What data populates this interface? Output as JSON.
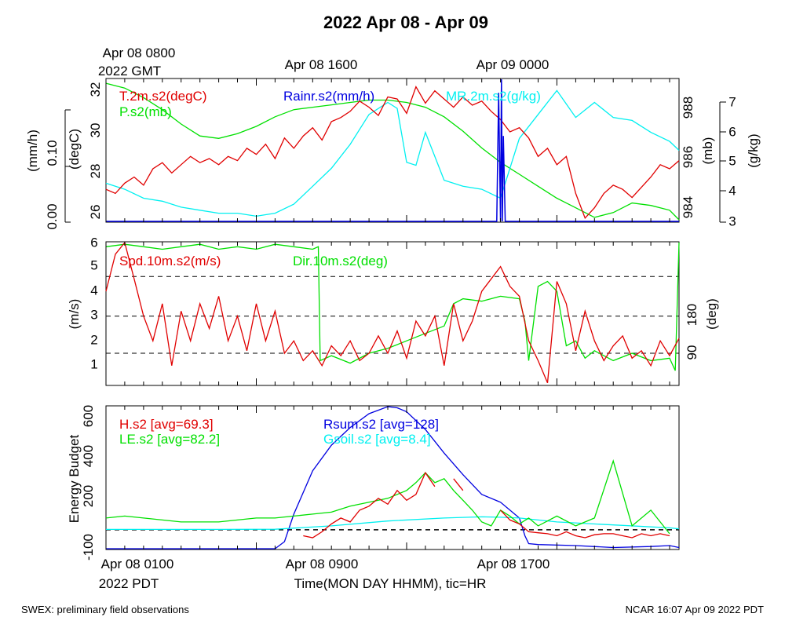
{
  "page": {
    "title": "2022 Apr 08 - Apr 09",
    "footer_left": "SWEX: preliminary field observations",
    "footer_right": "NCAR 16:07 Apr 09 2022 PDT",
    "top_time_labels": [
      "Apr 08 0800",
      "Apr 08 1600",
      "Apr 09 0000"
    ],
    "top_time_zone": "2022 GMT",
    "bottom_time_labels": [
      "Apr 08 0100",
      "Apr 08 0900",
      "Apr 08 1700"
    ],
    "bottom_time_zone": "2022 PDT",
    "xaxis_title": "Time(MON DAY HHMM), tic=HR"
  },
  "colors": {
    "red": "#e00000",
    "green": "#00e000",
    "blue": "#0000e0",
    "cyan": "#00f0f0",
    "axis": "#000000"
  },
  "chart_data": [
    {
      "type": "line",
      "panel": "top",
      "x_unit": "hours since Apr 08 0100 PDT",
      "xlim": [
        0,
        30.5
      ],
      "axes": {
        "left_inner": {
          "label": "(degC)",
          "ylim": [
            25.4,
            32.4
          ],
          "ticks": [
            26,
            28,
            30,
            32
          ]
        },
        "left_outer": {
          "label": "(mm/h)",
          "ylim": [
            0,
            0.2
          ],
          "ticks": [
            "0.00",
            "0.10"
          ]
        },
        "right_inner": {
          "label": "(mb)",
          "ylim": [
            983.2,
            989.2
          ],
          "ticks": [
            984,
            986,
            988
          ]
        },
        "right_outer": {
          "label": "(g/kg)",
          "ylim": [
            3,
            7.8
          ],
          "ticks": [
            3,
            4,
            5,
            6,
            7
          ]
        }
      },
      "series": [
        {
          "name": "T.2m.s2(degC)",
          "color": "red",
          "axis": "left_inner",
          "x": [
            0,
            0.5,
            1,
            1.5,
            2,
            2.5,
            3,
            3.5,
            4,
            4.5,
            5,
            5.5,
            6,
            6.5,
            7,
            7.5,
            8,
            8.5,
            9,
            9.5,
            10,
            10.5,
            11,
            11.5,
            12,
            12.5,
            13,
            13.5,
            14,
            14.5,
            15,
            15.5,
            16,
            16.5,
            17,
            17.5,
            18,
            18.5,
            19,
            19.5,
            20,
            20.5,
            21,
            21.5,
            22,
            22.5,
            23,
            23.5,
            24,
            24.5,
            25,
            25.5,
            26,
            26.5,
            27,
            27.5,
            28,
            28.5,
            29,
            29.5,
            30,
            30.5
          ],
          "y": [
            27.0,
            26.8,
            27.3,
            27.6,
            27.2,
            28.0,
            28.3,
            27.8,
            28.2,
            28.6,
            28.3,
            28.5,
            28.2,
            28.6,
            28.4,
            29.0,
            28.7,
            29.2,
            28.5,
            29.5,
            29.0,
            29.6,
            30.0,
            29.4,
            30.3,
            30.5,
            30.8,
            31.3,
            31.0,
            30.6,
            31.5,
            31.4,
            30.7,
            32.0,
            31.2,
            31.8,
            31.4,
            31.0,
            31.5,
            31.1,
            31.3,
            30.8,
            30.4,
            29.8,
            30.0,
            29.5,
            28.6,
            29.0,
            28.2,
            28.6,
            26.8,
            25.6,
            26.1,
            26.8,
            27.2,
            27.0,
            26.6,
            27.1,
            27.6,
            28.2,
            28.0,
            28.4
          ]
        },
        {
          "name": "P.s2(mb)",
          "color": "green",
          "axis": "right_inner",
          "x": [
            0,
            1,
            2,
            3,
            4,
            5,
            6,
            7,
            8,
            9,
            10,
            11,
            12,
            13,
            14,
            15,
            16,
            17,
            18,
            19,
            20,
            21,
            22,
            23,
            24,
            25,
            26,
            27,
            28,
            29,
            30,
            30.5
          ],
          "y": [
            989.0,
            988.8,
            988.4,
            987.9,
            987.3,
            986.8,
            986.7,
            986.9,
            987.2,
            987.6,
            987.9,
            988.0,
            988.1,
            988.2,
            988.3,
            988.3,
            988.2,
            988.0,
            987.6,
            987.0,
            986.3,
            985.7,
            985.2,
            984.7,
            984.2,
            983.8,
            983.4,
            983.6,
            984.0,
            983.9,
            983.7,
            983.3
          ]
        },
        {
          "name": "Rainr.s2(mm/h)",
          "color": "blue",
          "axis": "left_outer",
          "x": [
            0,
            20.8,
            20.9,
            21.0,
            21.05,
            21.1,
            21.15,
            21.25,
            21.35,
            30.5
          ],
          "y": [
            0,
            0,
            0.18,
            0,
            0.2,
            0,
            0.12,
            0,
            0,
            0
          ]
        },
        {
          "name": "MR.2m.s2(g/kg)",
          "color": "cyan",
          "axis": "right_outer",
          "x": [
            0,
            1,
            2,
            3,
            4,
            5,
            6,
            7,
            8,
            9,
            10,
            11,
            12,
            13,
            14,
            15,
            15.5,
            16,
            16.5,
            17,
            18,
            19,
            20,
            21,
            22,
            23,
            24,
            25,
            26,
            27,
            28,
            29,
            30,
            30.5
          ],
          "y": [
            4.3,
            4.1,
            3.8,
            3.7,
            3.5,
            3.4,
            3.3,
            3.3,
            3.2,
            3.3,
            3.6,
            4.2,
            4.8,
            5.6,
            6.6,
            7.0,
            6.8,
            5.0,
            4.9,
            6.0,
            4.4,
            4.2,
            4.1,
            3.8,
            5.8,
            6.6,
            7.4,
            6.5,
            7.0,
            6.5,
            6.4,
            6.0,
            5.7,
            5.4
          ]
        }
      ]
    },
    {
      "type": "line",
      "panel": "middle",
      "x_unit": "hours since Apr 08 0100 PDT",
      "xlim": [
        0,
        30.5
      ],
      "axes": {
        "left": {
          "label": "(m/s)",
          "ylim": [
            0.2,
            6
          ],
          "ticks": [
            1,
            2,
            3,
            4,
            5,
            6
          ]
        },
        "right": {
          "label": "(deg)",
          "ticks": [
            90,
            180
          ]
        }
      },
      "reference_lines_ms": [
        1.5,
        3.0,
        4.6
      ],
      "series": [
        {
          "name": "Spd.10m.s2(m/s)",
          "color": "red",
          "axis": "left",
          "x": [
            0,
            0.5,
            1,
            1.5,
            2,
            2.5,
            3,
            3.5,
            4,
            4.5,
            5,
            5.5,
            6,
            6.5,
            7,
            7.5,
            8,
            8.5,
            9,
            9.5,
            10,
            10.5,
            11,
            11.5,
            12,
            12.5,
            13,
            13.5,
            14,
            14.5,
            15,
            15.5,
            16,
            16.5,
            17,
            17.5,
            18,
            18.5,
            19,
            19.5,
            20,
            20.5,
            21,
            21.5,
            22,
            22.5,
            23,
            23.5,
            24,
            24.5,
            25,
            25.5,
            26,
            26.5,
            27,
            27.5,
            28,
            28.5,
            29,
            29.5,
            30,
            30.5
          ],
          "y": [
            4.0,
            5.5,
            6.0,
            4.5,
            3.0,
            2.0,
            3.5,
            1.0,
            3.2,
            2.0,
            3.5,
            2.5,
            3.8,
            2.0,
            3.0,
            1.6,
            3.5,
            2.0,
            3.2,
            1.5,
            2.0,
            1.2,
            1.6,
            1.0,
            1.8,
            1.4,
            2.0,
            1.2,
            1.5,
            2.2,
            1.5,
            2.4,
            1.3,
            2.8,
            2.2,
            3.0,
            1.0,
            3.5,
            2.0,
            2.8,
            4.0,
            4.5,
            5.0,
            4.2,
            3.8,
            2.0,
            1.2,
            0.3,
            4.4,
            3.5,
            1.6,
            3.2,
            2.0,
            1.2,
            1.8,
            2.2,
            1.3,
            1.6,
            1.0,
            2.0,
            1.4,
            2.1
          ]
        },
        {
          "name": "Dir.10m.s2(deg)",
          "color": "green",
          "axis": "left",
          "x": [
            0,
            1,
            2,
            3,
            4,
            5,
            6,
            7,
            8,
            9,
            10,
            11,
            11.3,
            11.4,
            12,
            13,
            14,
            15,
            16,
            17,
            18,
            18.5,
            19,
            20,
            21,
            22,
            22.3,
            22.5,
            23,
            23.5,
            24,
            24.5,
            25,
            25.5,
            26,
            27,
            28,
            29,
            30,
            30.3,
            30.5
          ],
          "y": [
            5.8,
            5.9,
            5.8,
            5.7,
            5.8,
            5.9,
            5.7,
            5.8,
            5.7,
            5.9,
            5.8,
            5.7,
            5.8,
            1.2,
            1.4,
            1.1,
            1.5,
            1.7,
            2.0,
            2.3,
            2.6,
            3.5,
            3.7,
            3.6,
            3.8,
            3.7,
            2.8,
            1.2,
            4.2,
            4.4,
            4.0,
            1.8,
            2.0,
            1.3,
            1.6,
            1.2,
            1.5,
            1.2,
            1.3,
            0.8,
            6.0
          ]
        }
      ]
    },
    {
      "type": "line",
      "panel": "bottom",
      "x_unit": "hours since Apr 08 0100 PDT",
      "xlim": [
        0,
        30.5
      ],
      "axes": {
        "left": {
          "label": "Energy Budget",
          "ylim": [
            -100,
            630
          ],
          "ticks": [
            -100,
            200,
            400,
            600
          ]
        }
      },
      "reference_lines": [
        0
      ],
      "series": [
        {
          "name": "H.s2 [avg=69.3]",
          "color": "red",
          "x": [
            10.5,
            11,
            11.5,
            12,
            12.5,
            13,
            13.5,
            14,
            14.5,
            15,
            15.5,
            16,
            16.5,
            17,
            17.5,
            18,
            18.5,
            19,
            19.5,
            20,
            20.5,
            21,
            21.5,
            22,
            22.5,
            23,
            23.5,
            24,
            24.5,
            25,
            25.5,
            26,
            26.5,
            27,
            27.5,
            28,
            28.5,
            29,
            29.5,
            30
          ],
          "y": [
            -30,
            -40,
            -10,
            30,
            60,
            40,
            100,
            120,
            160,
            130,
            200,
            150,
            180,
            290,
            220,
            null,
            260,
            200,
            null,
            null,
            null,
            100,
            50,
            30,
            -10,
            -15,
            -20,
            -30,
            -10,
            -30,
            -40,
            -25,
            -20,
            -20,
            -30,
            -40,
            -20,
            -30,
            -20,
            -30
          ]
        },
        {
          "name": "LE.s2 [avg=82.2]",
          "color": "green",
          "x": [
            0,
            1,
            2,
            3,
            4,
            5,
            6,
            7,
            8,
            9,
            10,
            11,
            12,
            13,
            14,
            15,
            16,
            16.5,
            17,
            17.5,
            18,
            18.5,
            19,
            19.5,
            20,
            20.5,
            21,
            21.5,
            22,
            22.5,
            23,
            24,
            25,
            26,
            27,
            28,
            29,
            30
          ],
          "y": [
            60,
            70,
            60,
            50,
            40,
            40,
            40,
            50,
            60,
            60,
            70,
            80,
            90,
            120,
            140,
            160,
            200,
            240,
            290,
            240,
            260,
            200,
            150,
            100,
            40,
            20,
            100,
            70,
            30,
            60,
            20,
            70,
            20,
            60,
            350,
            20,
            100,
            -20
          ]
        },
        {
          "name": "Rsum.s2 [avg=128]",
          "color": "blue",
          "x": [
            0,
            5,
            9,
            9.5,
            10,
            11,
            12,
            13,
            14,
            15,
            15.5,
            16,
            17,
            18,
            19,
            20,
            21,
            22,
            22.3,
            22.5,
            23,
            25,
            27,
            29,
            30,
            30.5
          ],
          "y": [
            -100,
            -100,
            -100,
            -60,
            80,
            300,
            430,
            520,
            590,
            630,
            620,
            600,
            510,
            390,
            280,
            180,
            140,
            60,
            -30,
            -70,
            -75,
            -80,
            -90,
            -85,
            -80,
            -90
          ]
        },
        {
          "name": "Gsoil.s2 [avg=8.4]",
          "color": "cyan",
          "x": [
            0,
            3,
            6,
            9,
            12,
            15,
            18,
            20,
            21,
            22,
            23,
            24,
            27,
            30,
            30.5
          ],
          "y": [
            2,
            2,
            2,
            3,
            20,
            45,
            60,
            66,
            64,
            60,
            50,
            40,
            25,
            10,
            5
          ]
        }
      ]
    }
  ]
}
